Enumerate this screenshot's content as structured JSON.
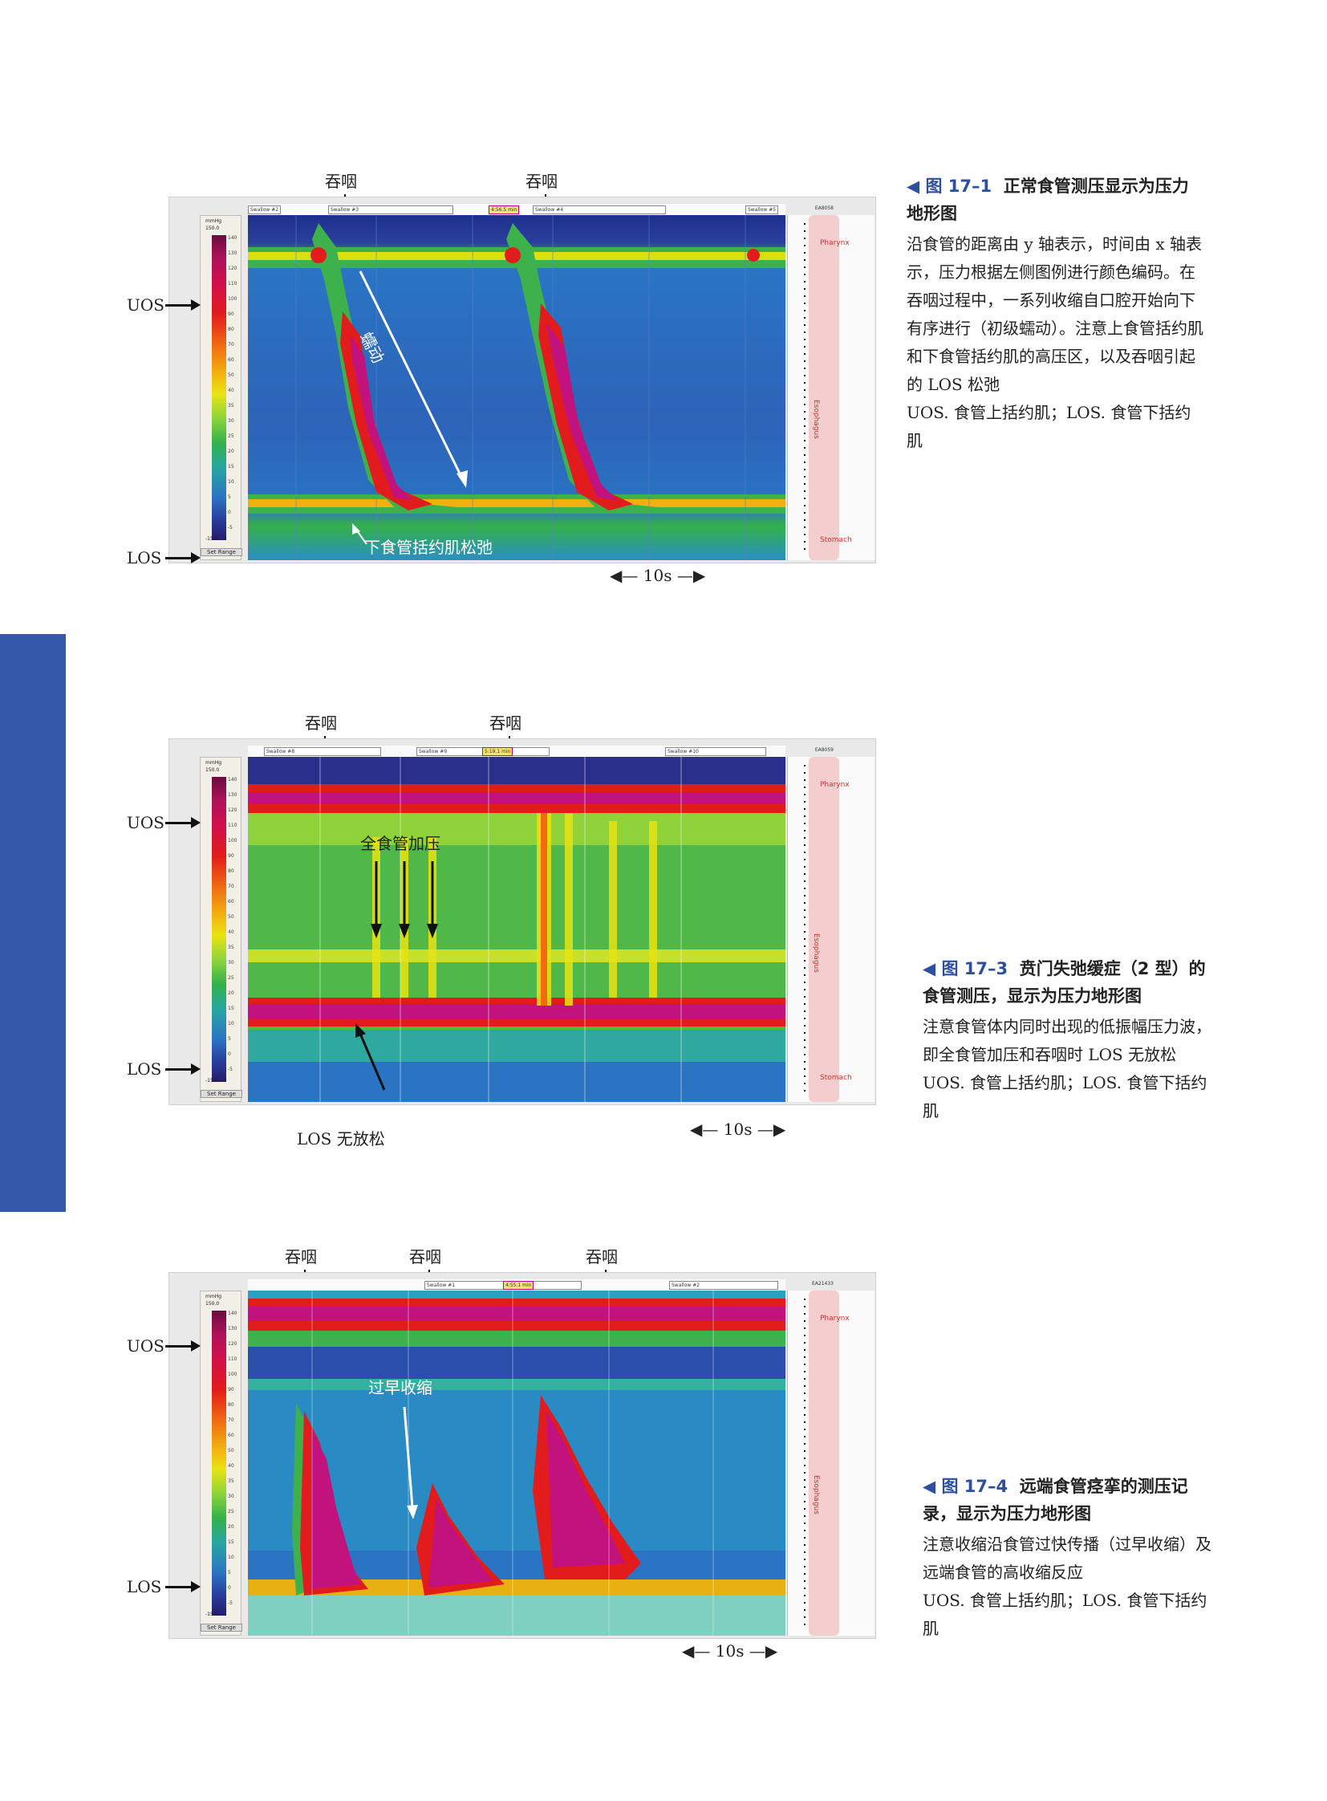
{
  "figures": [
    {
      "swallow_labels": [
        "吞咽",
        "吞咽"
      ],
      "uos_label": "UOS",
      "los_label": "LOS",
      "scale_label": "10s",
      "annotations": [
        "蠕动",
        "下食管括约肌松弛"
      ],
      "legend": {
        "unit": "mmHg",
        "max": "150.0",
        "min": "-15.0",
        "set_range": "Set Range"
      },
      "tags": [
        "Swallow #2",
        "Swallow #3",
        "4:56.5 min",
        "Swallow #4",
        "Swallow #5"
      ],
      "ea": "EA8058",
      "side_labels": [
        "Pharynx",
        "Esophagus",
        "Stomach"
      ],
      "caption": {
        "num": "◀ 图 17–1",
        "title": "正常食管测压显示为压力地形图",
        "body": [
          "沿食管的距离由 y 轴表示，时间由 x 轴表示，压力根据左侧图例进行颜色编码。在吞咽过程中，一系列收缩自口腔开始向下有序进行（初级蠕动）。注意上食管括约肌和下食管括约肌的高压区，以及吞咽引起的 LOS 松弛",
          "UOS. 食管上括约肌；LOS. 食管下括约肌"
        ]
      }
    },
    {
      "swallow_labels": [
        "吞咽",
        "吞咽"
      ],
      "uos_label": "UOS",
      "los_label": "LOS",
      "scale_label": "10s",
      "annotations": [
        "全食管加压",
        "LOS 无放松"
      ],
      "legend": {
        "unit": "mmHg",
        "max": "150.0",
        "min": "-15.0",
        "set_range": "Set Range"
      },
      "tags": [
        "Swallow #8",
        "Swallow #9",
        "5:19.1 min",
        "Swallow #10"
      ],
      "ea": "EA8059",
      "side_labels": [
        "Pharynx",
        "Esophagus",
        "Stomach"
      ],
      "caption": {
        "num": "◀ 图 17–3",
        "title": "贲门失弛缓症（2 型）的食管测压，显示为压力地形图",
        "body": [
          "注意食管体内同时出现的低振幅压力波，即全食管加压和吞咽时 LOS 无放松",
          "UOS. 食管上括约肌；LOS. 食管下括约肌"
        ]
      }
    },
    {
      "swallow_labels": [
        "吞咽",
        "吞咽",
        "吞咽"
      ],
      "uos_label": "UOS",
      "los_label": "LOS",
      "scale_label": "10s",
      "annotations": [
        "过早收缩"
      ],
      "legend": {
        "unit": "mmHg",
        "max": "150.0",
        "min": "-15.0",
        "set_range": "Set Range"
      },
      "tags": [
        "Swallow #1",
        "4:55.1 min",
        "Swallow #2"
      ],
      "ea": "EA21433",
      "side_labels": [
        "Pharynx",
        "Esophagus"
      ],
      "caption": {
        "num": "◀ 图 17–4",
        "title": "远端食管痉挛的测压记录，显示为压力地形图",
        "body": [
          "注意收缩沿食管过快传播（过早收缩）及远端食管的高收缩反应",
          "UOS. 食管上括约肌；LOS. 食管下括约肌"
        ]
      }
    }
  ],
  "colors": {
    "sidebar": "#3658a8",
    "caption_accent": "#2d4f9e"
  },
  "legend_ticks": [
    "140",
    "130",
    "120",
    "110",
    "100",
    "90",
    "80",
    "70",
    "60",
    "50",
    "40",
    "35",
    "30",
    "25",
    "20",
    "15",
    "10",
    "5",
    "0",
    "-5"
  ]
}
